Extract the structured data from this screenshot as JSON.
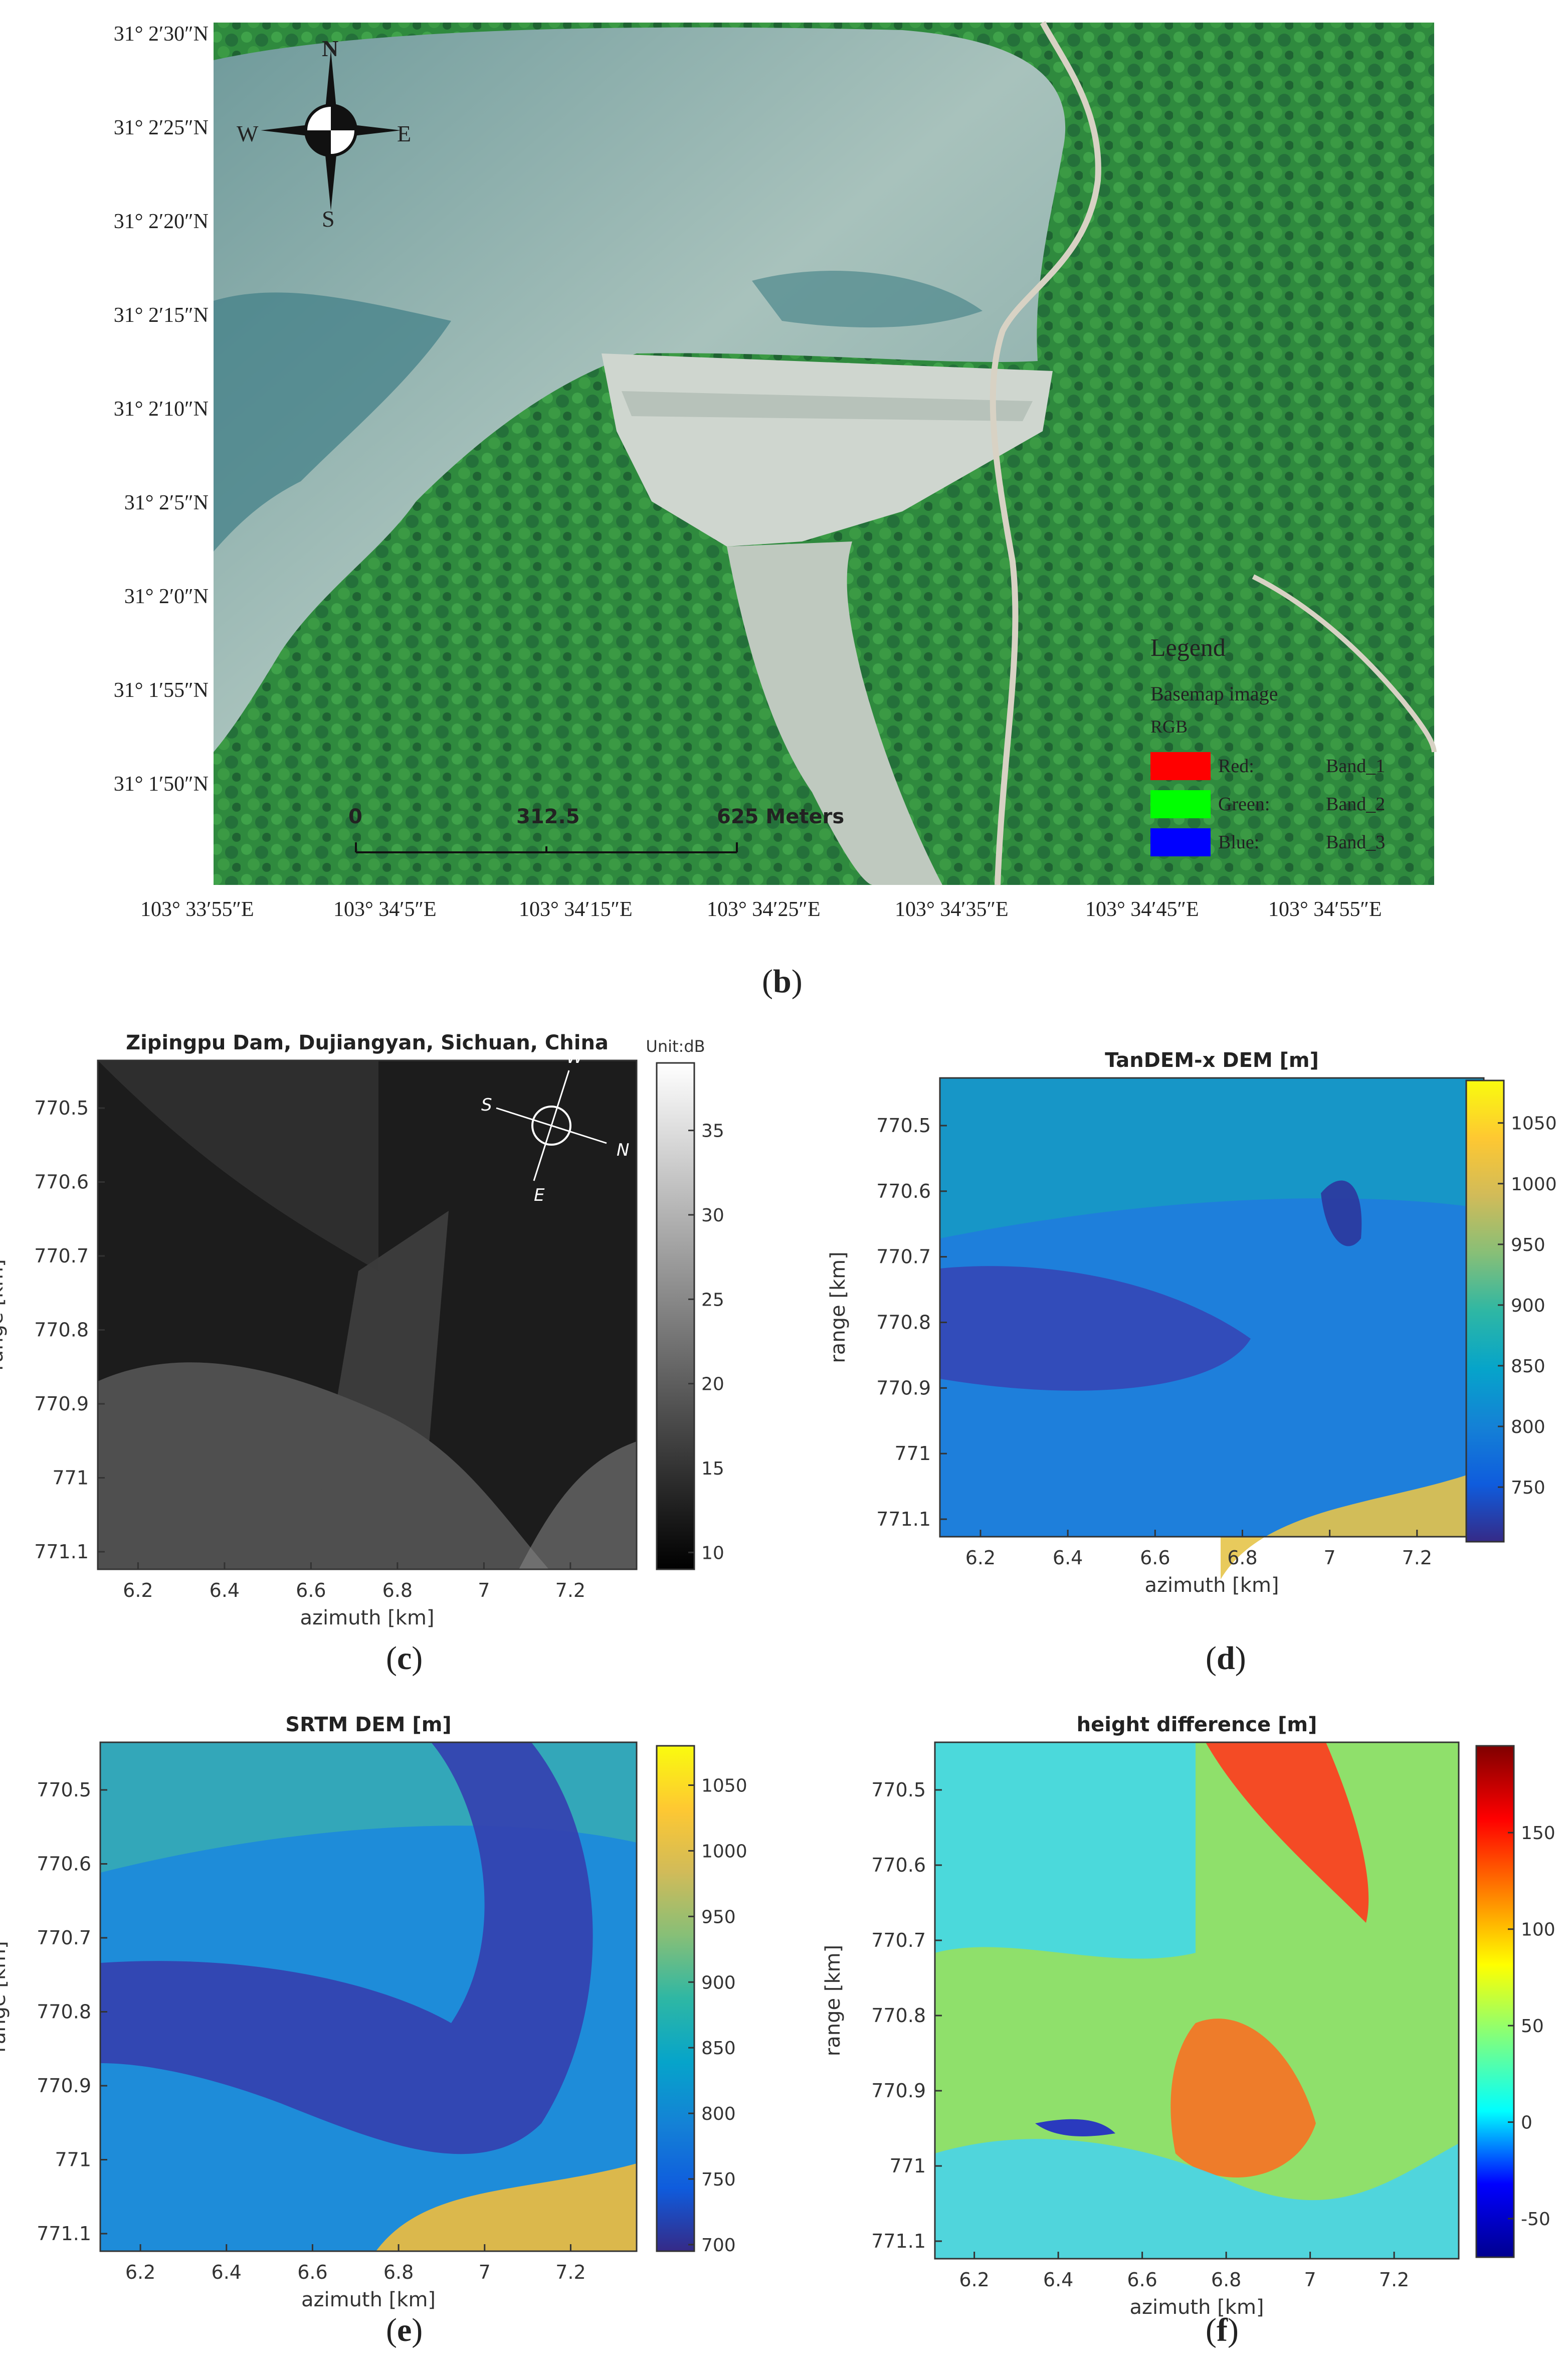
{
  "map_b": {
    "lat_labels": [
      "31° 2′30″N",
      "31° 2′25″N",
      "31° 2′20″N",
      "31° 2′15″N",
      "31° 2′10″N",
      "31° 2′5″N",
      "31° 2′0″N",
      "31° 1′55″N",
      "31° 1′50″N"
    ],
    "lon_labels": [
      "103° 33′55″E",
      "103° 34′5″E",
      "103° 34′15″E",
      "103° 34′25″E",
      "103° 34′35″E",
      "103° 34′45″E",
      "103° 34′55″E"
    ],
    "compass": {
      "n": "N",
      "s": "S",
      "w": "W",
      "e": "E"
    },
    "scale": {
      "zero": "0",
      "mid": "312.5",
      "end": "625 Meters"
    },
    "legend": {
      "title": "Legend",
      "subtitle": "Basemap image",
      "rgb": "RGB",
      "items": [
        {
          "swatch": "Red:",
          "band": "Band_1",
          "color": "#ff0000"
        },
        {
          "swatch": "Green:",
          "band": "Band_2",
          "color": "#00ff00"
        },
        {
          "swatch": "Blue:",
          "band": "Band_3",
          "color": "#0000ff"
        }
      ]
    },
    "label": "b"
  },
  "chart_data": [
    {
      "type": "heatmap",
      "title": "Zipingpu Dam, Dujiangyan, Sichuan, China",
      "xlabel": "azimuth [km]",
      "ylabel": "range [km]",
      "x_ticks": [
        "6.2",
        "6.4",
        "6.6",
        "6.8",
        "7",
        "7.2"
      ],
      "y_ticks": [
        "770.5",
        "770.6",
        "770.7",
        "770.8",
        "770.9",
        "771",
        "771.1"
      ],
      "colorbar": {
        "unit": "Unit:dB",
        "ticks": [
          "35",
          "30",
          "25",
          "20",
          "15",
          "10"
        ],
        "range": [
          9,
          39
        ],
        "colormap": "gray"
      },
      "compass": {
        "w": "W",
        "s": "S",
        "n": "N",
        "e": "E"
      },
      "label": "c"
    },
    {
      "type": "heatmap",
      "title": "TanDEM-x DEM [m]",
      "xlabel": "azimuth [km]",
      "ylabel": "range [km]",
      "x_ticks": [
        "6.2",
        "6.4",
        "6.6",
        "6.8",
        "7",
        "7.2"
      ],
      "y_ticks": [
        "770.5",
        "770.6",
        "770.7",
        "770.8",
        "770.9",
        "771",
        "771.1"
      ],
      "colorbar": {
        "ticks": [
          "1050",
          "1000",
          "950",
          "900",
          "850",
          "800",
          "750"
        ],
        "range": [
          705,
          1085
        ],
        "colormap": "parula"
      },
      "label": "d"
    },
    {
      "type": "heatmap",
      "title": "SRTM DEM [m]",
      "xlabel": "azimuth [km]",
      "ylabel": "range [km]",
      "x_ticks": [
        "6.2",
        "6.4",
        "6.6",
        "6.8",
        "7",
        "7.2"
      ],
      "y_ticks": [
        "770.5",
        "770.6",
        "770.7",
        "770.8",
        "770.9",
        "771",
        "771.1"
      ],
      "colorbar": {
        "ticks": [
          "1050",
          "1000",
          "950",
          "900",
          "850",
          "800",
          "750",
          "700"
        ],
        "range": [
          695,
          1080
        ],
        "colormap": "parula"
      },
      "label": "e"
    },
    {
      "type": "heatmap",
      "title": "height difference [m]",
      "xlabel": "azimuth [km]",
      "ylabel": "range [km]",
      "x_ticks": [
        "6.2",
        "6.4",
        "6.6",
        "6.8",
        "7",
        "7.2"
      ],
      "y_ticks": [
        "770.5",
        "770.6",
        "770.7",
        "770.8",
        "770.9",
        "771",
        "771.1"
      ],
      "colorbar": {
        "ticks": [
          "150",
          "100",
          "50",
          "0",
          "-50"
        ],
        "range": [
          -70,
          195
        ],
        "colormap": "jet"
      },
      "label": "f"
    }
  ]
}
